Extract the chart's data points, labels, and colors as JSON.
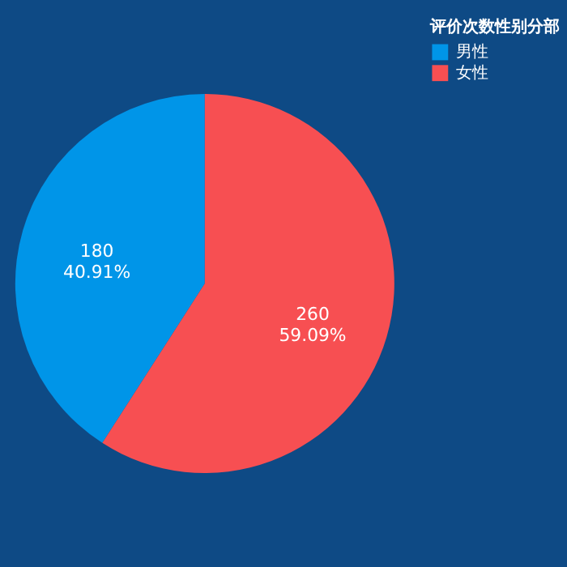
{
  "chart_data": {
    "type": "pie",
    "legend_title": "评价次数性别分部",
    "legend": "right",
    "categories": [
      "男性",
      "女性"
    ],
    "values": [
      180,
      260
    ],
    "colors": [
      "#0095e8",
      "#f74f52"
    ],
    "value_labels": [
      "180\n40.91%",
      "260\n59.09%"
    ]
  }
}
